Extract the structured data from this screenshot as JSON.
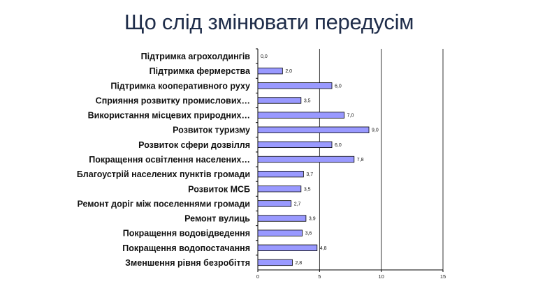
{
  "page": {
    "title": "Що слід змінювати передусім"
  },
  "chart_data": {
    "type": "bar",
    "orientation": "horizontal",
    "categories": [
      "Підтримка агрохолдингів",
      "Підтримка фермерства",
      "Підтримка кооперативного руху",
      "Сприяння розвитку промислових…",
      "Використання місцевих природних…",
      "Розвиток туризму",
      "Розвиток сфери дозвілля",
      "Покращення освітлення населених…",
      "Благоустрій населених пунктів громади",
      "Розвиток МСБ",
      "Ремонт доріг між поселеннями громади",
      "Ремонт вулиць",
      "Покращення водовідведення",
      "Покращення водопостачання",
      "Зменшення рівня безробіття"
    ],
    "values": [
      0.0,
      2.0,
      6.0,
      3.5,
      7.0,
      9.0,
      6.0,
      7.8,
      3.7,
      3.5,
      2.7,
      3.9,
      3.6,
      4.8,
      2.8
    ],
    "value_labels": [
      "0,0",
      "2,0",
      "6,0",
      "3,5",
      "7,0",
      "9,0",
      "6,0",
      "7,8",
      "3,7",
      "3,5",
      "2,7",
      "3,9",
      "3,6",
      "4,8",
      "2,8"
    ],
    "xlim": [
      0,
      15
    ],
    "xticks": [
      0,
      5,
      10,
      15
    ],
    "xtick_labels": [
      "0",
      "5",
      "10",
      "15"
    ],
    "grid": true,
    "bar_color": "#9999ff",
    "bar_stroke": "#000000"
  }
}
